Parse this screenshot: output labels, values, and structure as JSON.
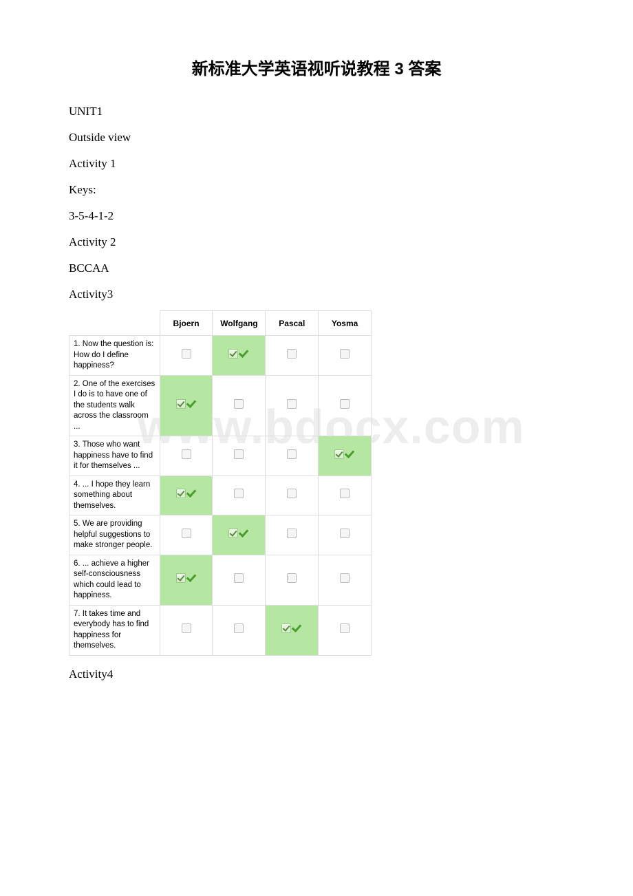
{
  "title": "新标准大学英语视听说教程 3 答案",
  "lines": [
    "UNIT1",
    "Outside view",
    "Activity 1",
    "Keys:",
    "3-5-4-1-2",
    "Activity 2",
    "BCCAA",
    "Activity3"
  ],
  "table": {
    "headers": [
      "",
      "Bjoern",
      "Wolfgang",
      "Pascal",
      "Yosma"
    ],
    "rows": [
      {
        "label": "1. Now the question is: How do I define happiness?",
        "cells": [
          false,
          true,
          false,
          false
        ]
      },
      {
        "label": "2. One of the exercises I do is to have one of the students walk across the classroom ...",
        "cells": [
          true,
          false,
          false,
          false
        ]
      },
      {
        "label": "3. Those who want happiness have to find it for themselves ...",
        "cells": [
          false,
          false,
          false,
          true
        ]
      },
      {
        "label": "4. ... I hope they learn something about themselves.",
        "cells": [
          true,
          false,
          false,
          false
        ]
      },
      {
        "label": "5. We are providing helpful suggestions to make stronger people.",
        "cells": [
          false,
          true,
          false,
          false
        ]
      },
      {
        "label": "6. ... achieve a higher self-consciousness which could lead to happiness.",
        "cells": [
          true,
          false,
          false,
          false
        ]
      },
      {
        "label": "7. It takes time and everybody has to find happiness for themselves.",
        "cells": [
          false,
          false,
          true,
          false
        ]
      }
    ]
  },
  "after_table": "Activity4",
  "watermark": "www.bdocx.com",
  "colors": {
    "correct_bg": "#b5e6a2",
    "border": "#dddddd",
    "watermark": "#ededed",
    "check_green": "#4a9c2e"
  }
}
